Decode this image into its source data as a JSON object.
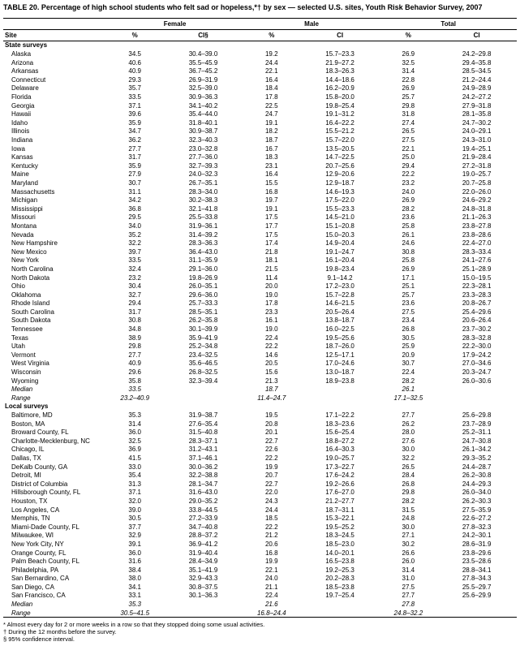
{
  "title": "TABLE 20. Percentage of high school students who felt sad or hopeless,*† by sex — selected U.S. sites, Youth Risk Behavior Survey, 2007",
  "header_groups": [
    "Female",
    "Male",
    "Total"
  ],
  "sub_headers": {
    "site": "Site",
    "pct": "%",
    "ci": "CI§",
    "ci_plain": "CI"
  },
  "sections": [
    {
      "title": "State surveys",
      "rows": [
        {
          "s": "Alaska",
          "f": "34.5",
          "fci": "30.4–39.0",
          "m": "19.2",
          "mci": "15.7–23.3",
          "t": "26.9",
          "tci": "24.2–29.8"
        },
        {
          "s": "Arizona",
          "f": "40.6",
          "fci": "35.5–45.9",
          "m": "24.4",
          "mci": "21.9–27.2",
          "t": "32.5",
          "tci": "29.4–35.8"
        },
        {
          "s": "Arkansas",
          "f": "40.9",
          "fci": "36.7–45.2",
          "m": "22.1",
          "mci": "18.3–26.3",
          "t": "31.4",
          "tci": "28.5–34.5"
        },
        {
          "s": "Connecticut",
          "f": "29.3",
          "fci": "26.9–31.9",
          "m": "16.4",
          "mci": "14.4–18.6",
          "t": "22.8",
          "tci": "21.2–24.4"
        },
        {
          "s": "Delaware",
          "f": "35.7",
          "fci": "32.5–39.0",
          "m": "18.4",
          "mci": "16.2–20.9",
          "t": "26.9",
          "tci": "24.9–28.9"
        },
        {
          "s": "Florida",
          "f": "33.5",
          "fci": "30.9–36.3",
          "m": "17.8",
          "mci": "15.8–20.0",
          "t": "25.7",
          "tci": "24.2–27.2"
        },
        {
          "s": "Georgia",
          "f": "37.1",
          "fci": "34.1–40.2",
          "m": "22.5",
          "mci": "19.8–25.4",
          "t": "29.8",
          "tci": "27.9–31.8"
        },
        {
          "s": "Hawaii",
          "f": "39.6",
          "fci": "35.4–44.0",
          "m": "24.7",
          "mci": "19.1–31.2",
          "t": "31.8",
          "tci": "28.1–35.8"
        },
        {
          "s": "Idaho",
          "f": "35.9",
          "fci": "31.8–40.1",
          "m": "19.1",
          "mci": "16.4–22.2",
          "t": "27.4",
          "tci": "24.7–30.2"
        },
        {
          "s": "Illinois",
          "f": "34.7",
          "fci": "30.9–38.7",
          "m": "18.2",
          "mci": "15.5–21.2",
          "t": "26.5",
          "tci": "24.0–29.1"
        },
        {
          "s": "Indiana",
          "f": "36.2",
          "fci": "32.3–40.3",
          "m": "18.7",
          "mci": "15.7–22.0",
          "t": "27.5",
          "tci": "24.3–31.0"
        },
        {
          "s": "Iowa",
          "f": "27.7",
          "fci": "23.0–32.8",
          "m": "16.7",
          "mci": "13.5–20.5",
          "t": "22.1",
          "tci": "19.4–25.1"
        },
        {
          "s": "Kansas",
          "f": "31.7",
          "fci": "27.7–36.0",
          "m": "18.3",
          "mci": "14.7–22.5",
          "t": "25.0",
          "tci": "21.9–28.4"
        },
        {
          "s": "Kentucky",
          "f": "35.9",
          "fci": "32.7–39.3",
          "m": "23.1",
          "mci": "20.7–25.6",
          "t": "29.4",
          "tci": "27.2–31.8"
        },
        {
          "s": "Maine",
          "f": "27.9",
          "fci": "24.0–32.3",
          "m": "16.4",
          "mci": "12.9–20.6",
          "t": "22.2",
          "tci": "19.0–25.7"
        },
        {
          "s": "Maryland",
          "f": "30.7",
          "fci": "26.7–35.1",
          "m": "15.5",
          "mci": "12.9–18.7",
          "t": "23.2",
          "tci": "20.7–25.8"
        },
        {
          "s": "Massachusetts",
          "f": "31.1",
          "fci": "28.3–34.0",
          "m": "16.8",
          "mci": "14.6–19.3",
          "t": "24.0",
          "tci": "22.0–26.0"
        },
        {
          "s": "Michigan",
          "f": "34.2",
          "fci": "30.2–38.3",
          "m": "19.7",
          "mci": "17.5–22.0",
          "t": "26.9",
          "tci": "24.6–29.2"
        },
        {
          "s": "Mississippi",
          "f": "36.8",
          "fci": "32.1–41.8",
          "m": "19.1",
          "mci": "15.5–23.3",
          "t": "28.2",
          "tci": "24.8–31.8"
        },
        {
          "s": "Missouri",
          "f": "29.5",
          "fci": "25.5–33.8",
          "m": "17.5",
          "mci": "14.5–21.0",
          "t": "23.6",
          "tci": "21.1–26.3"
        },
        {
          "s": "Montana",
          "f": "34.0",
          "fci": "31.9–36.1",
          "m": "17.7",
          "mci": "15.1–20.8",
          "t": "25.8",
          "tci": "23.8–27.8"
        },
        {
          "s": "Nevada",
          "f": "35.2",
          "fci": "31.4–39.2",
          "m": "17.5",
          "mci": "15.0–20.3",
          "t": "26.1",
          "tci": "23.8–28.6"
        },
        {
          "s": "New Hampshire",
          "f": "32.2",
          "fci": "28.3–36.3",
          "m": "17.4",
          "mci": "14.9–20.4",
          "t": "24.6",
          "tci": "22.4–27.0"
        },
        {
          "s": "New Mexico",
          "f": "39.7",
          "fci": "36.4–43.0",
          "m": "21.8",
          "mci": "19.1–24.7",
          "t": "30.8",
          "tci": "28.3–33.4"
        },
        {
          "s": "New York",
          "f": "33.5",
          "fci": "31.1–35.9",
          "m": "18.1",
          "mci": "16.1–20.4",
          "t": "25.8",
          "tci": "24.1–27.6"
        },
        {
          "s": "North Carolina",
          "f": "32.4",
          "fci": "29.1–36.0",
          "m": "21.5",
          "mci": "19.8–23.4",
          "t": "26.9",
          "tci": "25.1–28.9"
        },
        {
          "s": "North Dakota",
          "f": "23.2",
          "fci": "19.8–26.9",
          "m": "11.4",
          "mci": "9.1–14.2",
          "t": "17.1",
          "tci": "15.0–19.5"
        },
        {
          "s": "Ohio",
          "f": "30.4",
          "fci": "26.0–35.1",
          "m": "20.0",
          "mci": "17.2–23.0",
          "t": "25.1",
          "tci": "22.3–28.1"
        },
        {
          "s": "Oklahoma",
          "f": "32.7",
          "fci": "29.6–36.0",
          "m": "19.0",
          "mci": "15.7–22.8",
          "t": "25.7",
          "tci": "23.3–28.3"
        },
        {
          "s": "Rhode Island",
          "f": "29.4",
          "fci": "25.7–33.3",
          "m": "17.8",
          "mci": "14.6–21.5",
          "t": "23.6",
          "tci": "20.8–26.7"
        },
        {
          "s": "South Carolina",
          "f": "31.7",
          "fci": "28.5–35.1",
          "m": "23.3",
          "mci": "20.5–26.4",
          "t": "27.5",
          "tci": "25.4–29.6"
        },
        {
          "s": "South Dakota",
          "f": "30.8",
          "fci": "26.2–35.8",
          "m": "16.1",
          "mci": "13.8–18.7",
          "t": "23.4",
          "tci": "20.6–26.4"
        },
        {
          "s": "Tennessee",
          "f": "34.8",
          "fci": "30.1–39.9",
          "m": "19.0",
          "mci": "16.0–22.5",
          "t": "26.8",
          "tci": "23.7–30.2"
        },
        {
          "s": "Texas",
          "f": "38.9",
          "fci": "35.9–41.9",
          "m": "22.4",
          "mci": "19.5–25.6",
          "t": "30.5",
          "tci": "28.3–32.8"
        },
        {
          "s": "Utah",
          "f": "29.8",
          "fci": "25.2–34.8",
          "m": "22.2",
          "mci": "18.7–26.0",
          "t": "25.9",
          "tci": "22.2–30.0"
        },
        {
          "s": "Vermont",
          "f": "27.7",
          "fci": "23.4–32.5",
          "m": "14.6",
          "mci": "12.5–17.1",
          "t": "20.9",
          "tci": "17.9–24.2"
        },
        {
          "s": "West Virginia",
          "f": "40.9",
          "fci": "35.6–46.5",
          "m": "20.5",
          "mci": "17.0–24.6",
          "t": "30.7",
          "tci": "27.0–34.6"
        },
        {
          "s": "Wisconsin",
          "f": "29.6",
          "fci": "26.8–32.5",
          "m": "15.6",
          "mci": "13.0–18.7",
          "t": "22.4",
          "tci": "20.3–24.7"
        },
        {
          "s": "Wyoming",
          "f": "35.8",
          "fci": "32.3–39.4",
          "m": "21.3",
          "mci": "18.9–23.8",
          "t": "28.2",
          "tci": "26.0–30.6"
        }
      ],
      "median": {
        "s": "Median",
        "f": "33.5",
        "fci": "",
        "m": "18.7",
        "mci": "",
        "t": "26.1",
        "tci": ""
      },
      "range": {
        "s": "Range",
        "f": "23.2–40.9",
        "fci": "",
        "m": "11.4–24.7",
        "mci": "",
        "t": "17.1–32.5",
        "tci": ""
      }
    },
    {
      "title": "Local surveys",
      "rows": [
        {
          "s": "Baltimore, MD",
          "f": "35.3",
          "fci": "31.9–38.7",
          "m": "19.5",
          "mci": "17.1–22.2",
          "t": "27.7",
          "tci": "25.6–29.8"
        },
        {
          "s": "Boston, MA",
          "f": "31.4",
          "fci": "27.6–35.4",
          "m": "20.8",
          "mci": "18.3–23.6",
          "t": "26.2",
          "tci": "23.7–28.9"
        },
        {
          "s": "Broward County, FL",
          "f": "36.0",
          "fci": "31.5–40.8",
          "m": "20.1",
          "mci": "15.6–25.4",
          "t": "28.0",
          "tci": "25.2–31.1"
        },
        {
          "s": "Charlotte-Mecklenburg, NC",
          "f": "32.5",
          "fci": "28.3–37.1",
          "m": "22.7",
          "mci": "18.8–27.2",
          "t": "27.6",
          "tci": "24.7–30.8"
        },
        {
          "s": "Chicago, IL",
          "f": "36.9",
          "fci": "31.2–43.1",
          "m": "22.6",
          "mci": "16.4–30.3",
          "t": "30.0",
          "tci": "26.1–34.2"
        },
        {
          "s": "Dallas, TX",
          "f": "41.5",
          "fci": "37.1–46.1",
          "m": "22.2",
          "mci": "19.0–25.7",
          "t": "32.2",
          "tci": "29.3–35.2"
        },
        {
          "s": "DeKalb County, GA",
          "f": "33.0",
          "fci": "30.0–36.2",
          "m": "19.9",
          "mci": "17.3–22.7",
          "t": "26.5",
          "tci": "24.4–28.7"
        },
        {
          "s": "Detroit, MI",
          "f": "35.4",
          "fci": "32.2–38.8",
          "m": "20.7",
          "mci": "17.6–24.2",
          "t": "28.4",
          "tci": "26.2–30.8"
        },
        {
          "s": "District of Columbia",
          "f": "31.3",
          "fci": "28.1–34.7",
          "m": "22.7",
          "mci": "19.2–26.6",
          "t": "26.8",
          "tci": "24.4–29.3"
        },
        {
          "s": "Hillsborough County, FL",
          "f": "37.1",
          "fci": "31.6–43.0",
          "m": "22.0",
          "mci": "17.6–27.0",
          "t": "29.8",
          "tci": "26.0–34.0"
        },
        {
          "s": "Houston, TX",
          "f": "32.0",
          "fci": "29.0–35.2",
          "m": "24.3",
          "mci": "21.2–27.7",
          "t": "28.2",
          "tci": "26.2–30.3"
        },
        {
          "s": "Los Angeles, CA",
          "f": "39.0",
          "fci": "33.8–44.5",
          "m": "24.4",
          "mci": "18.7–31.1",
          "t": "31.5",
          "tci": "27.5–35.9"
        },
        {
          "s": "Memphis, TN",
          "f": "30.5",
          "fci": "27.2–33.9",
          "m": "18.5",
          "mci": "15.3–22.1",
          "t": "24.8",
          "tci": "22.6–27.2"
        },
        {
          "s": "Miami-Dade County, FL",
          "f": "37.7",
          "fci": "34.7–40.8",
          "m": "22.2",
          "mci": "19.5–25.2",
          "t": "30.0",
          "tci": "27.8–32.3"
        },
        {
          "s": "Milwaukee, WI",
          "f": "32.9",
          "fci": "28.8–37.2",
          "m": "21.2",
          "mci": "18.3–24.5",
          "t": "27.1",
          "tci": "24.2–30.1"
        },
        {
          "s": "New York City, NY",
          "f": "39.1",
          "fci": "36.9–41.2",
          "m": "20.6",
          "mci": "18.5–23.0",
          "t": "30.2",
          "tci": "28.6–31.9"
        },
        {
          "s": "Orange County, FL",
          "f": "36.0",
          "fci": "31.9–40.4",
          "m": "16.8",
          "mci": "14.0–20.1",
          "t": "26.6",
          "tci": "23.8–29.6"
        },
        {
          "s": "Palm Beach County, FL",
          "f": "31.6",
          "fci": "28.4–34.9",
          "m": "19.9",
          "mci": "16.5–23.8",
          "t": "26.0",
          "tci": "23.5–28.6"
        },
        {
          "s": "Philadelphia, PA",
          "f": "38.4",
          "fci": "35.1–41.9",
          "m": "22.1",
          "mci": "19.2–25.3",
          "t": "31.4",
          "tci": "28.8–34.1"
        },
        {
          "s": "San Bernardino, CA",
          "f": "38.0",
          "fci": "32.9–43.3",
          "m": "24.0",
          "mci": "20.2–28.3",
          "t": "31.0",
          "tci": "27.8–34.3"
        },
        {
          "s": "San Diego, CA",
          "f": "34.1",
          "fci": "30.8–37.5",
          "m": "21.1",
          "mci": "18.5–23.8",
          "t": "27.5",
          "tci": "25.5–29.7"
        },
        {
          "s": "San Francisco, CA",
          "f": "33.1",
          "fci": "30.1–36.3",
          "m": "22.4",
          "mci": "19.7–25.4",
          "t": "27.7",
          "tci": "25.6–29.9"
        }
      ],
      "median": {
        "s": "Median",
        "f": "35.3",
        "fci": "",
        "m": "21.6",
        "mci": "",
        "t": "27.8",
        "tci": ""
      },
      "range": {
        "s": "Range",
        "f": "30.5–41.5",
        "fci": "",
        "m": "16.8–24.4",
        "mci": "",
        "t": "24.8–32.2",
        "tci": ""
      }
    }
  ],
  "footnotes": [
    "* Almost every day for 2 or more weeks in a row so that they stopped doing some usual activities.",
    "† During the 12 months before the survey.",
    "§ 95% confidence interval."
  ]
}
